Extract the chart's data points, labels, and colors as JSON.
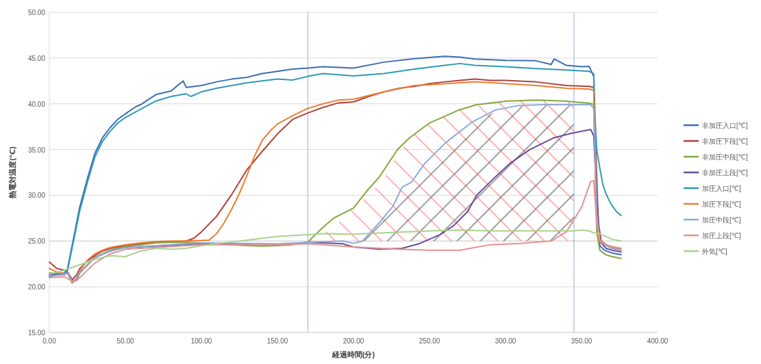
{
  "chart_data": {
    "type": "line",
    "xlabel": "経過時間(分)",
    "ylabel": "熱電対温度(℃)",
    "xlim": [
      0,
      400
    ],
    "ylim": [
      15,
      50
    ],
    "xticks": [
      {
        "value": 0,
        "label": "0.00"
      },
      {
        "value": 50,
        "label": "50.00"
      },
      {
        "value": 100,
        "label": "100.00"
      },
      {
        "value": 150,
        "label": "150.00"
      },
      {
        "value": 200,
        "label": "200.00"
      },
      {
        "value": 250,
        "label": "250.00"
      },
      {
        "value": 300,
        "label": "300.00"
      },
      {
        "value": 350,
        "label": "350.00"
      },
      {
        "value": 400,
        "label": "400.00"
      }
    ],
    "yticks": [
      {
        "value": 15,
        "label": "15.00"
      },
      {
        "value": 20,
        "label": "20.00"
      },
      {
        "value": 25,
        "label": "25.00"
      },
      {
        "value": 30,
        "label": "30.00"
      },
      {
        "value": 35,
        "label": "35.00"
      },
      {
        "value": 40,
        "label": "40.00"
      },
      {
        "value": 45,
        "label": "45.00"
      },
      {
        "value": 50,
        "label": "50.00"
      }
    ],
    "grid": "y",
    "legend": "right",
    "line_style": "solid",
    "marker": "none",
    "ref_lines": [
      {
        "axis": "x",
        "value": 170,
        "color": "#b4c7e7"
      },
      {
        "axis": "x",
        "value": 345,
        "color": "#b4c7e7"
      },
      {
        "axis": "y",
        "value": 25,
        "color": "#d0d0d0"
      }
    ],
    "series": [
      {
        "type": "area",
        "color": "#ff7f7f",
        "x": [
          170,
          180,
          190,
          200,
          210,
          220,
          230,
          240,
          250,
          260,
          270,
          280,
          290,
          300,
          320,
          345
        ],
        "values": [
          25.0,
          25.8,
          27.0,
          28.6,
          30.1,
          31.8,
          34.8,
          36.6,
          37.9,
          38.6,
          39.3,
          39.7,
          40.0,
          40.3,
          40.4,
          40.3
        ]
      },
      {
        "type": "area",
        "color": "#606060",
        "x": [
          205,
          210,
          220,
          230,
          240,
          250,
          260,
          270,
          280,
          290,
          300,
          320,
          345
        ],
        "values": [
          25.0,
          25.6,
          27.8,
          30.6,
          31.8,
          33.8,
          35.6,
          37.2,
          38.3,
          38.9,
          39.5,
          39.9,
          39.9
        ]
      },
      {
        "name": "非加圧入口[℃]",
        "color": "#3b6db5",
        "x": [
          0,
          5,
          10,
          12,
          20,
          25,
          30,
          35,
          40,
          45,
          50,
          57,
          60,
          70,
          80,
          88,
          90,
          100,
          110,
          120,
          130,
          140,
          150,
          160,
          170,
          180,
          200,
          220,
          240,
          260,
          270,
          280,
          300,
          320,
          330,
          332,
          340,
          350,
          355,
          358,
          360,
          362,
          365,
          370,
          376
        ],
        "values": [
          21.3,
          21.4,
          21.5,
          22.0,
          28.7,
          31.8,
          34.6,
          36.3,
          37.4,
          38.3,
          38.9,
          39.7,
          39.9,
          41.0,
          41.4,
          42.5,
          41.8,
          42.0,
          42.4,
          42.7,
          42.9,
          43.3,
          43.55,
          43.8,
          43.9,
          44.05,
          43.9,
          44.55,
          44.93,
          45.2,
          45.1,
          44.9,
          44.75,
          44.7,
          44.3,
          44.9,
          44.2,
          44.05,
          44.1,
          43.0,
          28.7,
          24.5,
          24.0,
          23.7,
          23.5
        ]
      },
      {
        "name": "非加圧下段[℃]",
        "color": "#b0413e",
        "x": [
          0,
          5,
          10,
          12,
          15,
          18,
          20,
          25,
          30,
          35,
          40,
          50,
          60,
          70,
          80,
          90,
          95,
          100,
          110,
          120,
          130,
          140,
          150,
          160,
          170,
          180,
          190,
          200,
          210,
          220,
          230,
          240,
          250,
          260,
          270,
          280,
          290,
          300,
          320,
          340,
          355,
          358,
          361,
          363,
          366,
          370,
          376
        ],
        "values": [
          22.7,
          22.0,
          21.8,
          21.6,
          20.8,
          21.3,
          22.0,
          22.8,
          23.4,
          23.9,
          24.2,
          24.5,
          24.7,
          24.85,
          24.9,
          25.0,
          25.3,
          26.0,
          27.7,
          30.1,
          32.8,
          34.8,
          36.7,
          38.3,
          39.0,
          39.6,
          40.1,
          40.2,
          40.8,
          41.3,
          41.7,
          41.9,
          42.2,
          42.4,
          42.55,
          42.7,
          42.55,
          42.55,
          42.4,
          42.0,
          41.9,
          41.8,
          27,
          25,
          24.6,
          24.3,
          24.0
        ]
      },
      {
        "name": "非加圧中段[℃]",
        "color": "#82a83c",
        "x": [
          0,
          10,
          12,
          15,
          18,
          20,
          30,
          40,
          50,
          60,
          70,
          80,
          90,
          100,
          110,
          120,
          130,
          140,
          150,
          160,
          170,
          180,
          187,
          194,
          200,
          209,
          217,
          229,
          237,
          250,
          269,
          281,
          301,
          321,
          339,
          356,
          358,
          360,
          362,
          366,
          370,
          376
        ],
        "values": [
          21.5,
          21.5,
          21.6,
          20.5,
          20.7,
          21.5,
          23.2,
          24.0,
          24.4,
          24.6,
          24.8,
          24.85,
          24.85,
          24.8,
          24.7,
          24.6,
          24.5,
          24.45,
          24.5,
          24.6,
          24.9,
          26.5,
          27.5,
          28.1,
          28.6,
          30.5,
          32.0,
          35.0,
          36.3,
          37.9,
          39.3,
          39.9,
          40.3,
          40.4,
          40.3,
          40.05,
          39.9,
          26,
          24.0,
          23.5,
          23.3,
          23.1
        ]
      },
      {
        "name": "非加圧上段[℃]",
        "color": "#6a4a9c",
        "x": [
          0,
          10,
          12,
          15,
          18,
          20,
          30,
          40,
          50,
          100,
          150,
          171,
          193,
          200,
          217,
          232,
          243,
          257,
          266,
          275,
          281,
          292,
          303,
          316,
          332,
          344,
          356,
          358,
          360,
          362,
          366,
          370,
          376
        ],
        "values": [
          21.3,
          21.4,
          21.6,
          20.6,
          20.9,
          21.6,
          23.2,
          23.9,
          24.3,
          24.7,
          24.6,
          24.85,
          24.7,
          24.35,
          24.1,
          24.2,
          24.7,
          25.7,
          26.7,
          28.2,
          30.0,
          31.8,
          33.5,
          35.0,
          36.3,
          36.8,
          37.2,
          36.5,
          30,
          25,
          24.2,
          24.0,
          23.8
        ]
      },
      {
        "name": "加圧入口[℃]",
        "color": "#2e9ab5",
        "x": [
          0,
          5,
          10,
          12,
          20,
          25,
          30,
          35,
          40,
          45,
          50,
          60,
          70,
          80,
          90,
          93,
          100,
          110,
          120,
          130,
          140,
          150,
          160,
          170,
          180,
          200,
          220,
          240,
          260,
          270,
          280,
          300,
          320,
          340,
          355,
          358,
          359,
          360,
          362,
          364,
          366,
          368,
          370,
          373,
          376
        ],
        "values": [
          21.1,
          21.3,
          21.5,
          21.8,
          28.3,
          31.4,
          34.2,
          35.9,
          37.0,
          37.9,
          38.5,
          39.4,
          40.3,
          40.8,
          41.1,
          40.8,
          41.3,
          41.7,
          42.0,
          42.3,
          42.5,
          42.7,
          42.6,
          43.0,
          43.3,
          43.05,
          43.3,
          43.8,
          44.2,
          44.4,
          44.2,
          44.05,
          43.85,
          43.7,
          43.55,
          43.3,
          38,
          35.0,
          33.0,
          31.2,
          30.2,
          29.5,
          28.9,
          28.2,
          27.8
        ]
      },
      {
        "name": "加圧下段[℃]",
        "color": "#ed7d31",
        "x": [
          0,
          5,
          10,
          12,
          15,
          18,
          20,
          25,
          30,
          35,
          40,
          50,
          60,
          70,
          80,
          90,
          100,
          105,
          110,
          115,
          120,
          125,
          130,
          135,
          140,
          145,
          150,
          160,
          170,
          180,
          190,
          200,
          220,
          240,
          250,
          270,
          280,
          300,
          320,
          340,
          355,
          358,
          359,
          360,
          362,
          366,
          370,
          376
        ],
        "values": [
          22.0,
          21.6,
          21.4,
          21.5,
          20.4,
          21.0,
          21.8,
          22.9,
          23.6,
          24.0,
          24.3,
          24.6,
          24.8,
          24.95,
          25.0,
          25.0,
          25.05,
          25.1,
          25.8,
          27.0,
          28.5,
          30.2,
          32.2,
          34.3,
          36.0,
          37.0,
          37.8,
          38.7,
          39.5,
          40.0,
          40.4,
          40.5,
          41.3,
          42.0,
          42.1,
          42.3,
          42.4,
          42.2,
          42.0,
          41.7,
          41.6,
          41.5,
          35,
          27,
          25.2,
          24.6,
          24.3,
          24.2
        ]
      },
      {
        "name": "加圧中段[℃]",
        "color": "#8eaadb",
        "x": [
          0,
          10,
          12,
          15,
          18,
          20,
          30,
          40,
          50,
          100,
          150,
          170,
          193,
          200,
          206,
          217,
          226,
          232,
          238,
          247,
          261,
          278,
          293,
          308,
          324,
          356,
          358,
          360,
          362,
          366,
          370,
          376
        ],
        "values": [
          21.2,
          21.3,
          21.5,
          20.6,
          20.9,
          21.6,
          23.2,
          23.9,
          24.3,
          24.8,
          24.7,
          24.85,
          25.0,
          24.75,
          25.0,
          27.0,
          28.8,
          30.9,
          31.4,
          33.5,
          35.8,
          38.0,
          39.3,
          39.8,
          39.9,
          39.9,
          39.5,
          28,
          25,
          24.5,
          24.2,
          24.0
        ]
      },
      {
        "name": "加圧上段[℃]",
        "color": "#e6908e",
        "x": [
          0,
          10,
          15,
          18,
          20,
          30,
          40,
          50,
          100,
          150,
          170,
          200,
          230,
          250,
          270,
          290,
          310,
          330,
          340,
          350,
          356,
          358,
          360,
          362,
          366,
          370,
          376
        ],
        "values": [
          21.0,
          21.1,
          20.6,
          20.7,
          21.0,
          22.6,
          23.6,
          24.1,
          24.6,
          24.6,
          24.7,
          24.35,
          24.1,
          24.0,
          24.0,
          24.6,
          24.75,
          25.0,
          26.0,
          28.7,
          31.5,
          31.6,
          27,
          25,
          24.6,
          24.4,
          24.2
        ]
      },
      {
        "name": "外気[℃]",
        "color": "#a9d18e",
        "x": [
          0,
          5,
          10,
          12,
          15,
          20,
          30,
          40,
          50,
          60,
          70,
          80,
          90,
          100,
          110,
          120,
          130,
          140,
          150,
          160,
          170,
          180,
          200,
          220,
          250,
          270,
          290,
          310,
          330,
          345,
          350,
          355,
          358,
          362,
          366,
          370,
          376
        ],
        "values": [
          21.4,
          21.6,
          21.8,
          22.0,
          22.1,
          22.4,
          23.0,
          23.4,
          23.3,
          23.9,
          24.2,
          24.1,
          24.2,
          24.5,
          24.7,
          24.9,
          25.1,
          25.3,
          25.5,
          25.6,
          25.7,
          25.8,
          25.75,
          25.9,
          26.1,
          26.2,
          26.1,
          26.1,
          26.1,
          26.1,
          26.2,
          26.1,
          25.9,
          25.8,
          25.5,
          25.2,
          25.0
        ]
      }
    ]
  }
}
